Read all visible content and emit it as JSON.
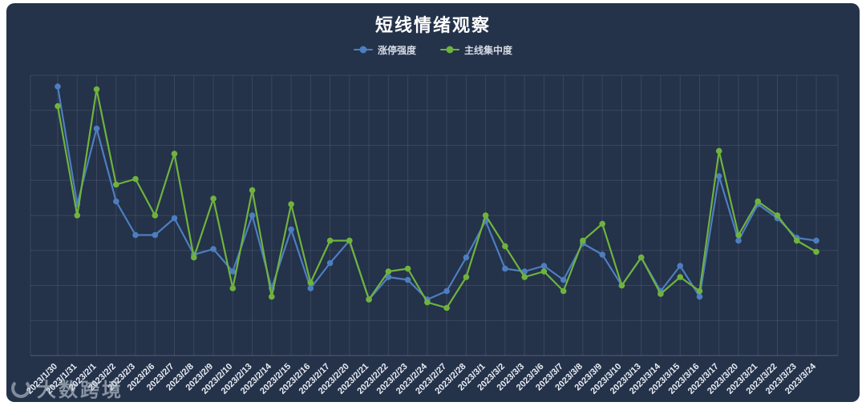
{
  "card": {
    "background": "#24324a"
  },
  "title": "短线情绪观察",
  "legend": [
    {
      "label": "涨停强度",
      "color": "#4d7ebf"
    },
    {
      "label": "主线集中度",
      "color": "#6fb33d"
    }
  ],
  "watermark": {
    "text": "大数跨境"
  },
  "chart_data": {
    "type": "line",
    "title": "短线情绪观察",
    "categories": [
      "2023/1/30",
      "2023/1/31",
      "2023/2/1",
      "2023/2/2",
      "2023/2/3",
      "2023/2/6",
      "2023/2/7",
      "2023/2/8",
      "2023/2/9",
      "2023/2/10",
      "2023/2/13",
      "2023/2/14",
      "2023/2/15",
      "2023/2/16",
      "2023/2/17",
      "2023/2/20",
      "2023/2/21",
      "2023/2/22",
      "2023/2/23",
      "2023/2/24",
      "2023/2/27",
      "2023/2/28",
      "2023/3/1",
      "2023/3/2",
      "2023/3/3",
      "2023/3/6",
      "2023/3/7",
      "2023/3/8",
      "2023/3/9",
      "2023/3/10",
      "2023/3/13",
      "2023/3/14",
      "2023/3/15",
      "2023/3/16",
      "2023/3/17",
      "2023/3/20",
      "2023/3/21",
      "2023/3/22",
      "2023/3/23",
      "2023/3/24"
    ],
    "series": [
      {
        "name": "涨停强度",
        "color": "#4d7ebf",
        "values": [
          96,
          54,
          81,
          55,
          43,
          43,
          49,
          36,
          38,
          30,
          50,
          24,
          45,
          24,
          33,
          41,
          20,
          28,
          27,
          20,
          23,
          35,
          48,
          31,
          30,
          32,
          27,
          40,
          36,
          25,
          35,
          23,
          32,
          21,
          64,
          41,
          54,
          49,
          42,
          41
        ]
      },
      {
        "name": "主线集中度",
        "color": "#6fb33d",
        "values": [
          89,
          50,
          95,
          61,
          63,
          50,
          72,
          35,
          56,
          24,
          59,
          21,
          54,
          26,
          41,
          41,
          20,
          30,
          31,
          19,
          17,
          28,
          50,
          39,
          28,
          30,
          23,
          41,
          47,
          25,
          35,
          22,
          28,
          23,
          73,
          43,
          55,
          50,
          41,
          37
        ]
      }
    ],
    "xlabel": "",
    "ylabel": "",
    "ylim": [
      0,
      100
    ],
    "grid": true,
    "legend_position": "top",
    "x_label_rotation": 45,
    "y_axis_labels_visible": false
  }
}
